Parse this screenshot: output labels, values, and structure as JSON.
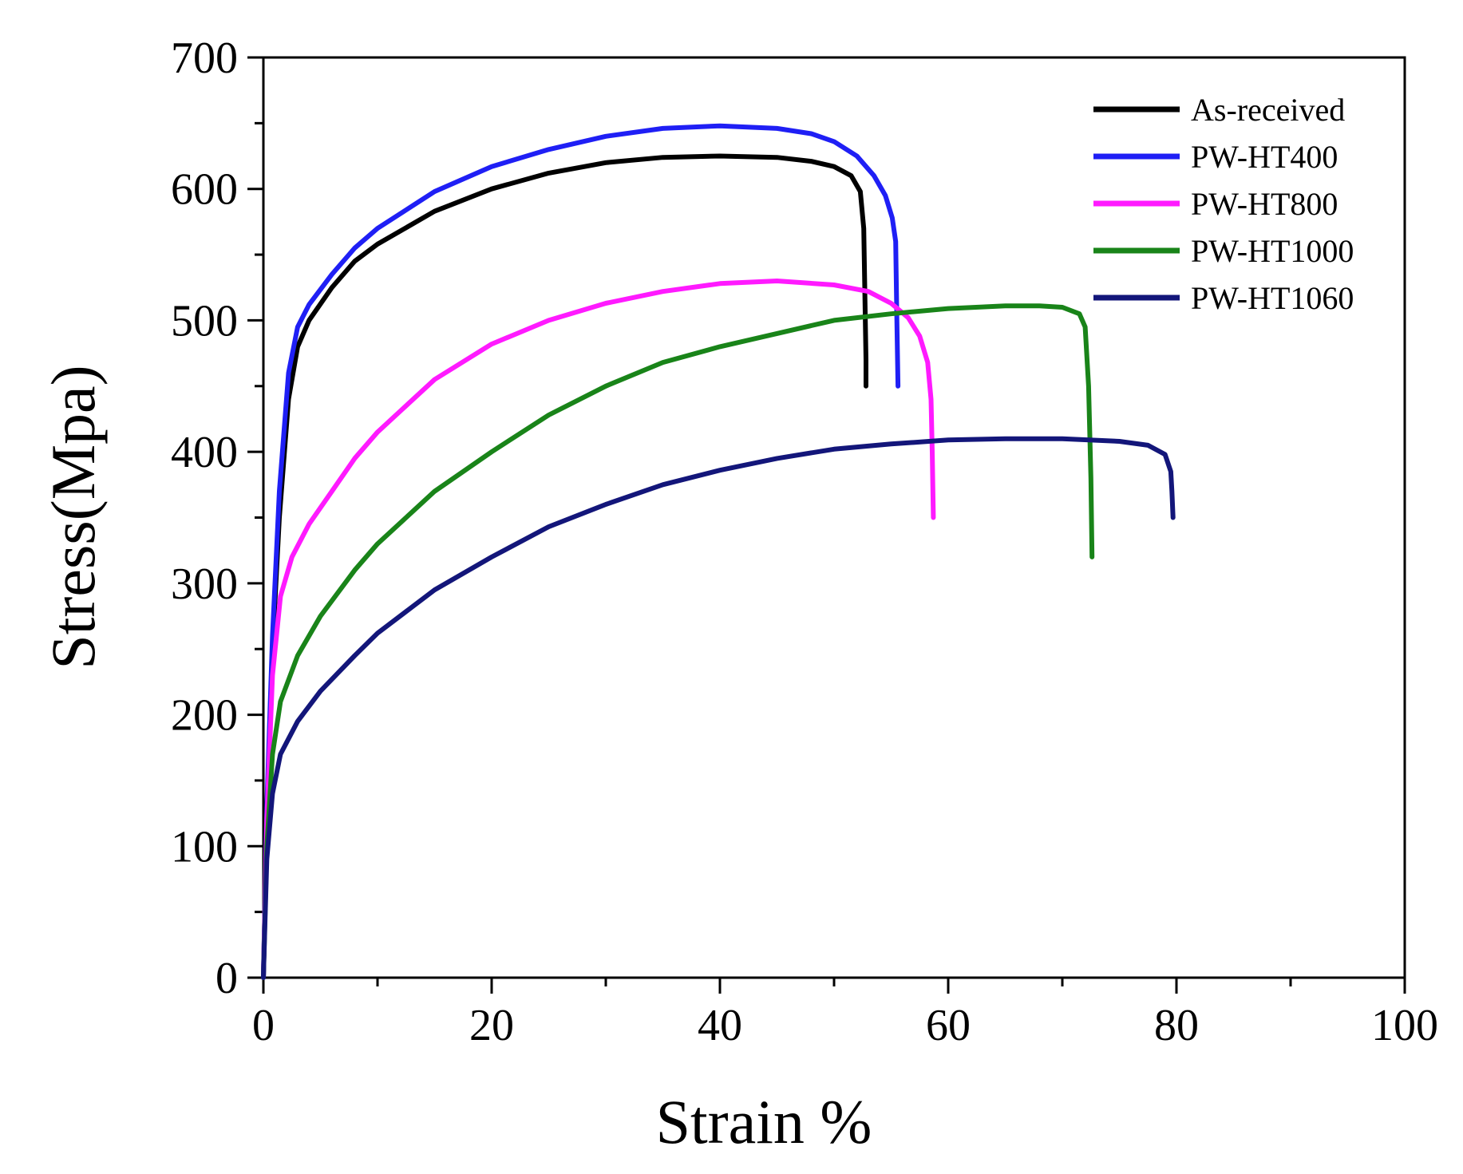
{
  "chart_data": {
    "type": "line",
    "title": "",
    "xlabel": "Strain %",
    "ylabel": "Stress(Mpa)",
    "xlim": [
      0,
      100
    ],
    "ylim": [
      0,
      700
    ],
    "xticks": [
      0,
      20,
      40,
      60,
      80,
      100
    ],
    "yticks": [
      0,
      100,
      200,
      300,
      400,
      500,
      600,
      700
    ],
    "x_minor_step": 10,
    "y_minor_step": 50,
    "grid": false,
    "legend_position": "top-right",
    "series": [
      {
        "name": "As-received",
        "color": "#000000",
        "points": [
          [
            0,
            0
          ],
          [
            0.3,
            120
          ],
          [
            0.8,
            250
          ],
          [
            1.4,
            350
          ],
          [
            2.2,
            440
          ],
          [
            3,
            480
          ],
          [
            4,
            500
          ],
          [
            6,
            525
          ],
          [
            8,
            545
          ],
          [
            10,
            558
          ],
          [
            15,
            583
          ],
          [
            20,
            600
          ],
          [
            25,
            612
          ],
          [
            30,
            620
          ],
          [
            35,
            624
          ],
          [
            40,
            625
          ],
          [
            45,
            624
          ],
          [
            48,
            621
          ],
          [
            50,
            617
          ],
          [
            51.5,
            610
          ],
          [
            52.3,
            598
          ],
          [
            52.6,
            570
          ],
          [
            52.7,
            520
          ],
          [
            52.8,
            470
          ],
          [
            52.8,
            450
          ]
        ]
      },
      {
        "name": "PW-HT400",
        "color": "#1f1ff5",
        "points": [
          [
            0,
            0
          ],
          [
            0.3,
            130
          ],
          [
            0.8,
            260
          ],
          [
            1.4,
            370
          ],
          [
            2.2,
            460
          ],
          [
            3,
            495
          ],
          [
            4,
            512
          ],
          [
            6,
            535
          ],
          [
            8,
            555
          ],
          [
            10,
            570
          ],
          [
            15,
            598
          ],
          [
            20,
            617
          ],
          [
            25,
            630
          ],
          [
            30,
            640
          ],
          [
            35,
            646
          ],
          [
            40,
            648
          ],
          [
            45,
            646
          ],
          [
            48,
            642
          ],
          [
            50,
            636
          ],
          [
            52,
            625
          ],
          [
            53.5,
            610
          ],
          [
            54.5,
            595
          ],
          [
            55.1,
            578
          ],
          [
            55.4,
            560
          ],
          [
            55.5,
            500
          ],
          [
            55.6,
            450
          ]
        ]
      },
      {
        "name": "PW-HT800",
        "color": "#ff1aff",
        "points": [
          [
            0,
            0
          ],
          [
            0.3,
            120
          ],
          [
            0.8,
            230
          ],
          [
            1.5,
            290
          ],
          [
            2.5,
            320
          ],
          [
            4,
            345
          ],
          [
            6,
            370
          ],
          [
            8,
            395
          ],
          [
            10,
            415
          ],
          [
            15,
            455
          ],
          [
            20,
            482
          ],
          [
            25,
            500
          ],
          [
            30,
            513
          ],
          [
            35,
            522
          ],
          [
            40,
            528
          ],
          [
            45,
            530
          ],
          [
            50,
            527
          ],
          [
            53,
            522
          ],
          [
            55,
            513
          ],
          [
            56.5,
            502
          ],
          [
            57.5,
            488
          ],
          [
            58.2,
            468
          ],
          [
            58.5,
            440
          ],
          [
            58.6,
            400
          ],
          [
            58.7,
            350
          ]
        ]
      },
      {
        "name": "PW-HT1000",
        "color": "#198419",
        "points": [
          [
            0,
            0
          ],
          [
            0.3,
            100
          ],
          [
            0.8,
            170
          ],
          [
            1.5,
            210
          ],
          [
            3,
            245
          ],
          [
            5,
            275
          ],
          [
            8,
            310
          ],
          [
            10,
            330
          ],
          [
            15,
            370
          ],
          [
            20,
            400
          ],
          [
            25,
            428
          ],
          [
            30,
            450
          ],
          [
            35,
            468
          ],
          [
            40,
            480
          ],
          [
            45,
            490
          ],
          [
            50,
            500
          ],
          [
            55,
            505
          ],
          [
            60,
            509
          ],
          [
            65,
            511
          ],
          [
            68,
            511
          ],
          [
            70,
            510
          ],
          [
            71.5,
            505
          ],
          [
            72,
            495
          ],
          [
            72.3,
            450
          ],
          [
            72.5,
            380
          ],
          [
            72.6,
            320
          ]
        ]
      },
      {
        "name": "PW-HT1060",
        "color": "#13167a",
        "points": [
          [
            0,
            0
          ],
          [
            0.3,
            90
          ],
          [
            0.8,
            140
          ],
          [
            1.5,
            170
          ],
          [
            3,
            195
          ],
          [
            5,
            218
          ],
          [
            8,
            245
          ],
          [
            10,
            262
          ],
          [
            15,
            295
          ],
          [
            20,
            320
          ],
          [
            25,
            343
          ],
          [
            30,
            360
          ],
          [
            35,
            375
          ],
          [
            40,
            386
          ],
          [
            45,
            395
          ],
          [
            50,
            402
          ],
          [
            55,
            406
          ],
          [
            60,
            409
          ],
          [
            65,
            410
          ],
          [
            70,
            410
          ],
          [
            75,
            408
          ],
          [
            77.5,
            405
          ],
          [
            79,
            398
          ],
          [
            79.5,
            385
          ],
          [
            79.6,
            370
          ],
          [
            79.7,
            350
          ]
        ]
      }
    ]
  }
}
